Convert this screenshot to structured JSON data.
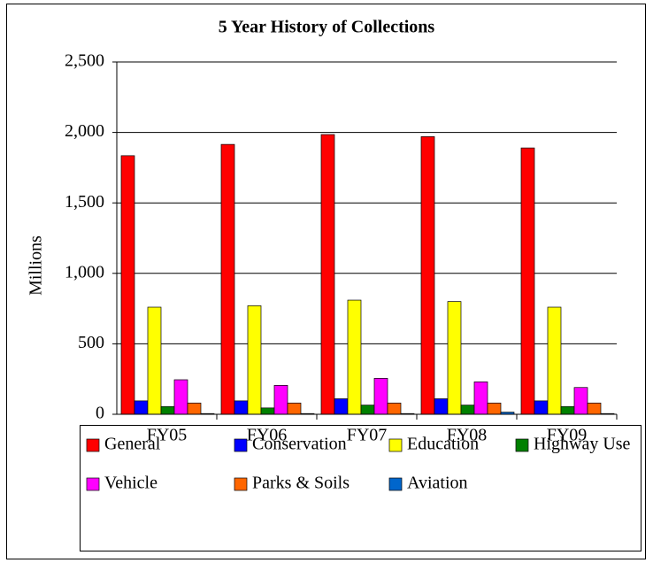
{
  "chart_data": {
    "type": "bar",
    "title": "5 Year History of Collections",
    "y_label": "Millions",
    "categories": [
      "FY05",
      "FY06",
      "FY07",
      "FY08",
      "FY09"
    ],
    "series": [
      {
        "name": "General",
        "color": "#ff0000",
        "values": [
          1835,
          1915,
          1985,
          1970,
          1890
        ]
      },
      {
        "name": "Conservation",
        "color": "#0000ff",
        "values": [
          95,
          95,
          110,
          110,
          95
        ]
      },
      {
        "name": "Education",
        "color": "#ffff00",
        "values": [
          760,
          770,
          810,
          800,
          760
        ]
      },
      {
        "name": "Highway Use",
        "color": "#008000",
        "values": [
          55,
          45,
          65,
          65,
          55
        ]
      },
      {
        "name": "Vehicle",
        "color": "#ff00ff",
        "values": [
          245,
          205,
          255,
          230,
          190
        ]
      },
      {
        "name": "Parks & Soils",
        "color": "#ff6600",
        "values": [
          80,
          80,
          80,
          80,
          80
        ]
      },
      {
        "name": "Aviation",
        "color": "#0066cc",
        "values": [
          5,
          5,
          5,
          15,
          5
        ]
      }
    ],
    "ylim": [
      0,
      2500
    ],
    "yticks": [
      0,
      500,
      {
        "value": 1000,
        "label": "1,000"
      },
      {
        "value": 1500,
        "label": "1,500"
      },
      {
        "value": 2000,
        "label": "2,000"
      },
      {
        "value": 2500,
        "label": "2,500"
      }
    ],
    "grid": true,
    "legend": "bottom"
  }
}
